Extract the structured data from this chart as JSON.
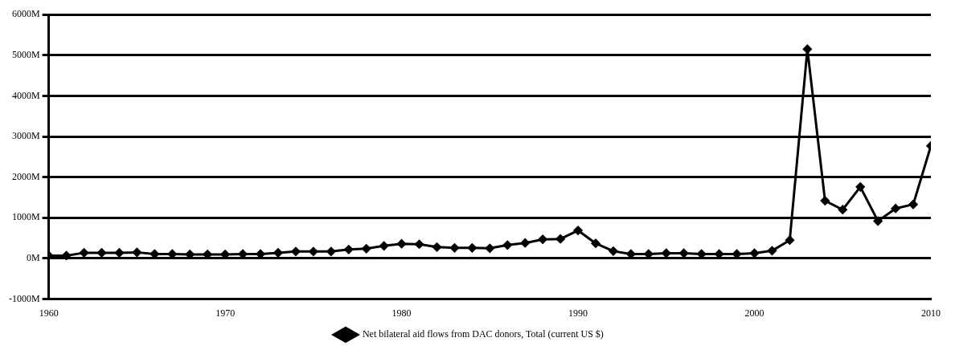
{
  "chart_data": {
    "type": "line",
    "x": [
      1960,
      1961,
      1962,
      1963,
      1964,
      1965,
      1966,
      1967,
      1968,
      1969,
      1970,
      1971,
      1972,
      1973,
      1974,
      1975,
      1976,
      1977,
      1978,
      1979,
      1980,
      1981,
      1982,
      1983,
      1984,
      1985,
      1986,
      1987,
      1988,
      1989,
      1990,
      1991,
      1992,
      1993,
      1994,
      1995,
      1996,
      1997,
      1998,
      1999,
      2000,
      2001,
      2002,
      2003,
      2004,
      2005,
      2006,
      2007,
      2008,
      2009,
      2010
    ],
    "series": [
      {
        "name": "Net bilateral aid flows from DAC donors, Total (current US $)",
        "color": "#000000",
        "values": [
          70,
          70,
          140,
          140,
          140,
          150,
          110,
          110,
          100,
          100,
          100,
          110,
          110,
          140,
          170,
          170,
          170,
          220,
          240,
          310,
          360,
          350,
          280,
          260,
          260,
          250,
          330,
          380,
          470,
          480,
          690,
          370,
          180,
          110,
          110,
          130,
          130,
          110,
          110,
          110,
          130,
          190,
          450,
          5150,
          1420,
          1200,
          1760,
          920,
          1230,
          1330,
          2770
        ]
      }
    ],
    "xlim": [
      1960,
      2010
    ],
    "xticks": [
      1960,
      1970,
      1980,
      1990,
      2000,
      2010
    ],
    "ylim": [
      -1000,
      6000
    ],
    "yticks": [
      {
        "value": -1000,
        "label": "-1000M"
      },
      {
        "value": 0,
        "label": "0M"
      },
      {
        "value": 1000,
        "label": "1000M"
      },
      {
        "value": 2000,
        "label": "2000M"
      },
      {
        "value": 3000,
        "label": "3000M"
      },
      {
        "value": 4000,
        "label": "4000M"
      },
      {
        "value": 5000,
        "label": "5000M"
      },
      {
        "value": 6000,
        "label": "6000M"
      }
    ],
    "grid": "y",
    "legend": "bottom",
    "marker": "diamond",
    "line_style": "solid"
  }
}
